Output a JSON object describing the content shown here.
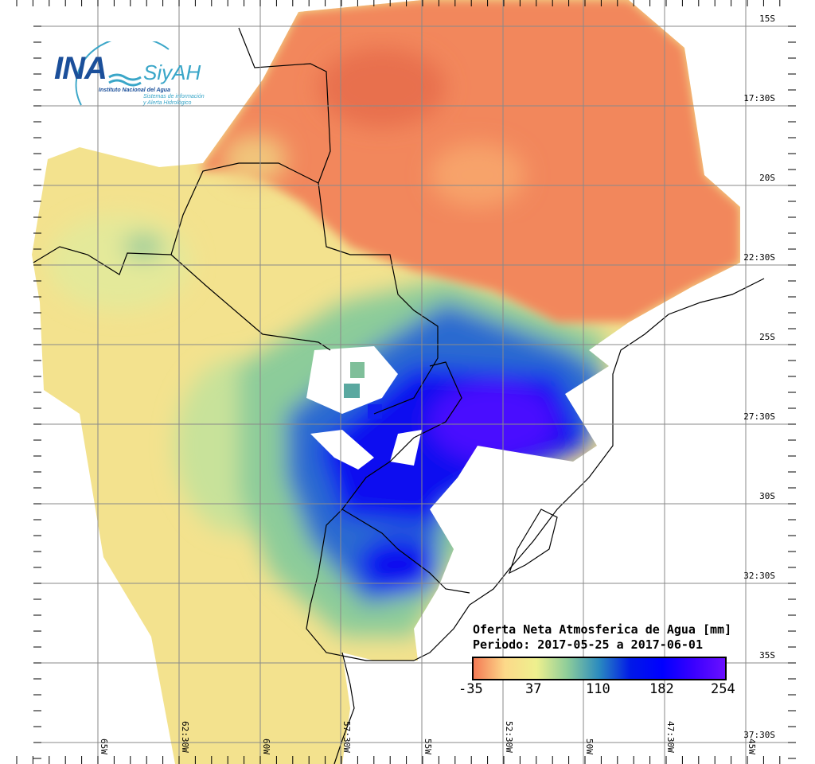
{
  "logo": {
    "ina": "INA",
    "siyah": "SiyAH",
    "institute": "Instituto Nacional del Agua",
    "system_line1": "Sistemas de información",
    "system_line2": "y Alerta Hidrológico"
  },
  "legend": {
    "title": "Oferta Neta Atmosferica de Agua [mm]",
    "period": "Periodo: 2017-05-25 a 2017-06-01",
    "ticks": [
      "-35",
      "37",
      "110",
      "182",
      "254"
    ],
    "colors": [
      "#f47a55",
      "#fcd98a",
      "#eef08e",
      "#8ccc9a",
      "#2a8abf",
      "#0018e8",
      "#0000ff",
      "#3a00ff",
      "#6a10ff"
    ]
  },
  "lat_labels": [
    "15S",
    "17:30S",
    "20S",
    "22:30S",
    "25S",
    "27:30S",
    "30S",
    "32:30S",
    "35S",
    "37:30S"
  ],
  "lon_labels": [
    "65W",
    "62:30W",
    "60W",
    "57:30W",
    "55W",
    "52:30W",
    "50W",
    "47:30W",
    "45W"
  ]
}
